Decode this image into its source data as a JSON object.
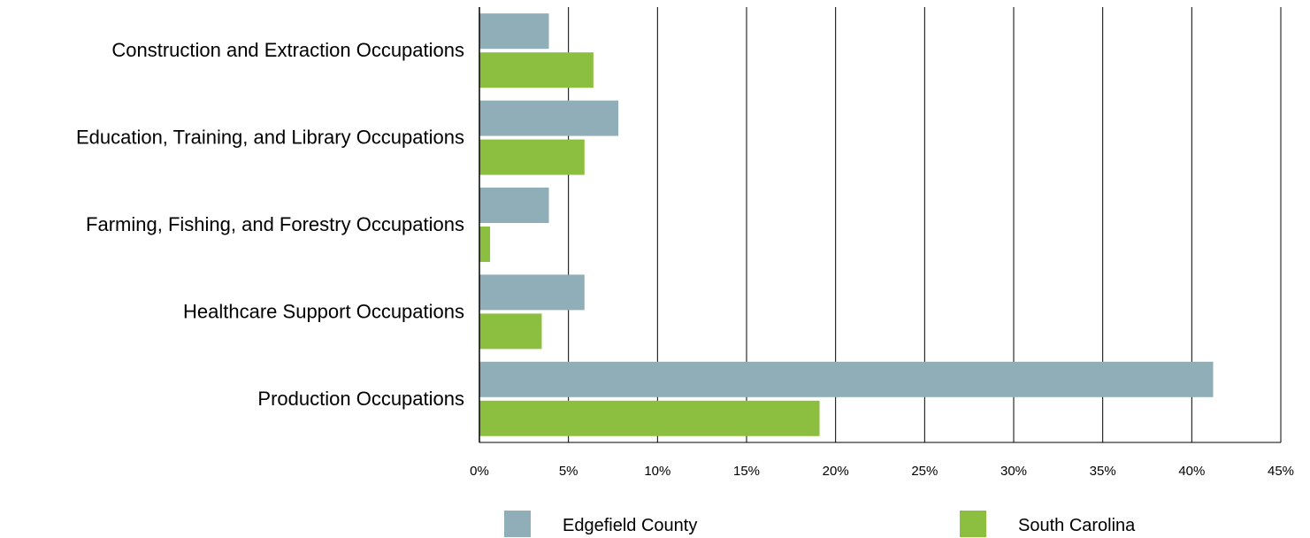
{
  "chart_data": {
    "type": "bar",
    "orientation": "horizontal",
    "categories": [
      "Construction and Extraction Occupations",
      "Education, Training, and Library Occupations",
      "Farming, Fishing, and Forestry Occupations",
      "Healthcare Support Occupations",
      "Production Occupations"
    ],
    "series": [
      {
        "name": "Edgefield County",
        "color": "#90AEB8",
        "values": [
          3.9,
          7.8,
          3.9,
          5.9,
          41.2
        ]
      },
      {
        "name": "South Carolina",
        "color": "#8CBF3F",
        "values": [
          6.4,
          5.9,
          0.6,
          3.5,
          19.1
        ]
      }
    ],
    "xlim": [
      0,
      45
    ],
    "ticks": [
      "0%",
      "5%",
      "10%",
      "15%",
      "20%",
      "25%",
      "30%",
      "35%",
      "40%",
      "45%"
    ],
    "grid": true,
    "legend_position": "bottom"
  }
}
